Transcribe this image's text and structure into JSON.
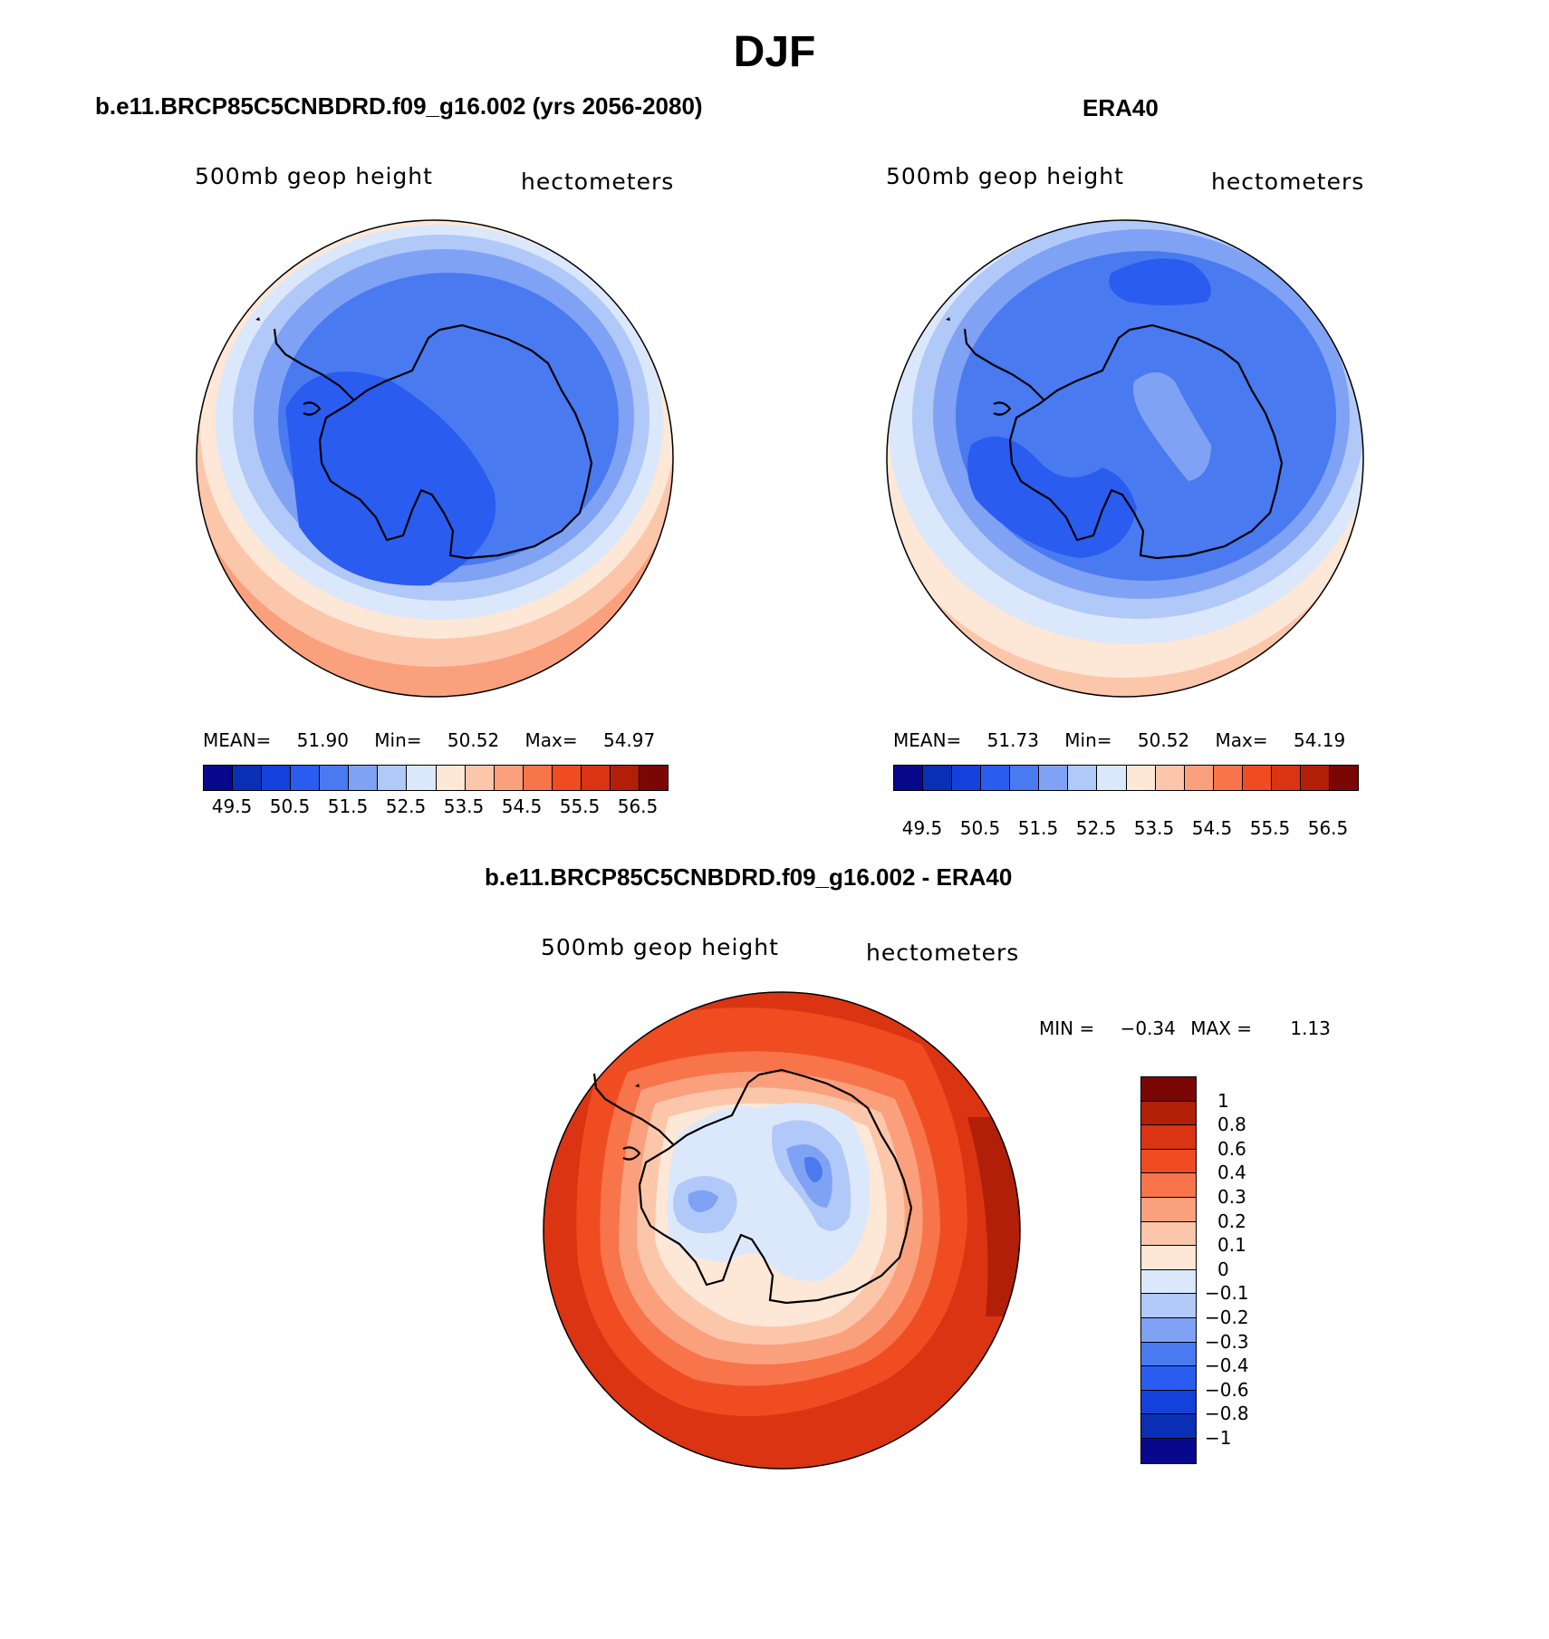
{
  "figure": {
    "title": "DJF"
  },
  "panels": {
    "model": {
      "title": "b.e11.BRCP85C5CNBDRD.f09_g16.002 (yrs 2056-2080)",
      "variable": "500mb geop height",
      "units": "hectometers",
      "mean_label": "MEAN=",
      "mean_value": "51.90",
      "min_label": "Min=",
      "min_value": "50.52",
      "max_label": "Max=",
      "max_value": "54.97"
    },
    "obs": {
      "title": "ERA40",
      "variable": "500mb geop height",
      "units": "hectometers",
      "mean_label": "MEAN=",
      "mean_value": "51.73",
      "min_label": "Min=",
      "min_value": "50.52",
      "max_label": "Max=",
      "max_value": "54.19"
    },
    "diff": {
      "title": "b.e11.BRCP85C5CNBDRD.f09_g16.002 - ERA40",
      "variable": "500mb geop height",
      "units": "hectometers",
      "min_label": "MIN =",
      "min_value": "−0.34",
      "max_label": "MAX =",
      "max_value": "1.13"
    }
  },
  "colorbar_main": {
    "colors": [
      "#08088c",
      "#0a2fb4",
      "#1441dc",
      "#2a5cf0",
      "#4a7af0",
      "#7fa2f4",
      "#b1c9f8",
      "#dbe8fb",
      "#fde7d6",
      "#fcc6aa",
      "#fba07c",
      "#f8744a",
      "#f04c22",
      "#da3412",
      "#b21f08",
      "#7a0606"
    ],
    "tick_labels": [
      "49.5",
      "50.5",
      "51.5",
      "52.5",
      "53.5",
      "54.5",
      "55.5",
      "56.5"
    ]
  },
  "colorbar_diff": {
    "colors_top_to_bottom": [
      "#7a0606",
      "#b21f08",
      "#da3412",
      "#f04c22",
      "#f8744a",
      "#fba07c",
      "#fcc6aa",
      "#fde7d6",
      "#dbe8fb",
      "#b1c9f8",
      "#7fa2f4",
      "#4a7af0",
      "#2a5cf0",
      "#1441dc",
      "#0a2fb4",
      "#08088c"
    ],
    "tick_labels": [
      "1",
      "0.8",
      "0.6",
      "0.4",
      "0.3",
      "0.2",
      "0.1",
      "0",
      "−0.1",
      "−0.2",
      "−0.3",
      "−0.4",
      "−0.6",
      "−0.8",
      "−1"
    ]
  },
  "map_colors": {
    "ocean_outer": "#fde7d6",
    "coastline": "#000000"
  }
}
